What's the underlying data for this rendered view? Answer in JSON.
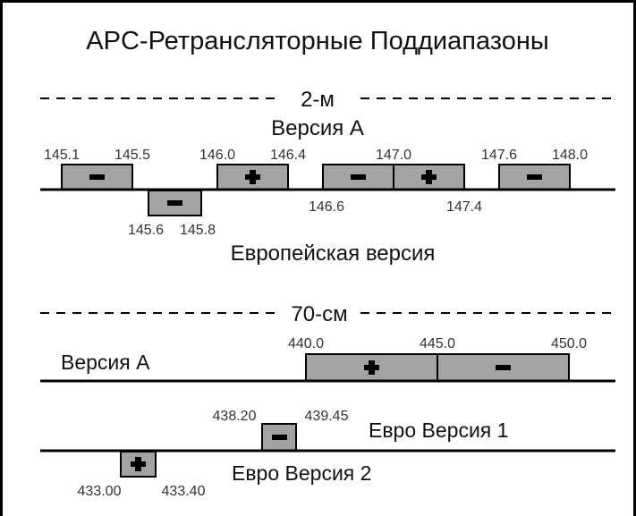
{
  "title": "APC-Ретрансляторные Поддиапазоны",
  "sections": {
    "two_meter": {
      "header": "2-м",
      "version_a_label": "Версия A",
      "euro_label": "Европейская версия",
      "frequencies": {
        "f145_1": "145.1",
        "f145_5": "145.5",
        "f146_0": "146.0",
        "f146_4": "146.4",
        "f147_0": "147.0",
        "f147_6": "147.6",
        "f148_0": "148.0",
        "f146_6": "146.6",
        "f147_4": "147.4",
        "f145_6": "145.6",
        "f145_8": "145.8"
      },
      "segments": [
        {
          "from": "145.1",
          "to": "145.5",
          "shift": "minus"
        },
        {
          "from": "146.0",
          "to": "146.4",
          "shift": "plus"
        },
        {
          "from": "146.6",
          "to": "147.0",
          "shift": "minus"
        },
        {
          "from": "147.0",
          "to": "147.4",
          "shift": "plus"
        },
        {
          "from": "147.6",
          "to": "148.0",
          "shift": "minus"
        },
        {
          "from": "145.6",
          "to": "145.8",
          "shift": "minus",
          "band": "euro"
        }
      ]
    },
    "seventy_cm": {
      "header": "70-см",
      "version_a_label": "Версия A",
      "euro1_label": "Евро Версия 1",
      "euro2_label": "Евро Версия 2",
      "frequencies": {
        "f440_0": "440.0",
        "f445_0": "445.0",
        "f450_0": "450.0",
        "f438_20": "438.20",
        "f439_45": "439.45",
        "f433_00": "433.00",
        "f433_40": "433.40"
      },
      "segments": [
        {
          "from": "440.0",
          "to": "445.0",
          "shift": "plus"
        },
        {
          "from": "445.0",
          "to": "450.0",
          "shift": "minus"
        },
        {
          "from": "438.20",
          "to": "439.45",
          "shift": "minus",
          "band": "euro1"
        },
        {
          "from": "433.00",
          "to": "433.40",
          "shift": "plus",
          "band": "euro2"
        }
      ]
    }
  },
  "colors": {
    "segment_fill": "#a3a3a3",
    "line": "#000000"
  }
}
